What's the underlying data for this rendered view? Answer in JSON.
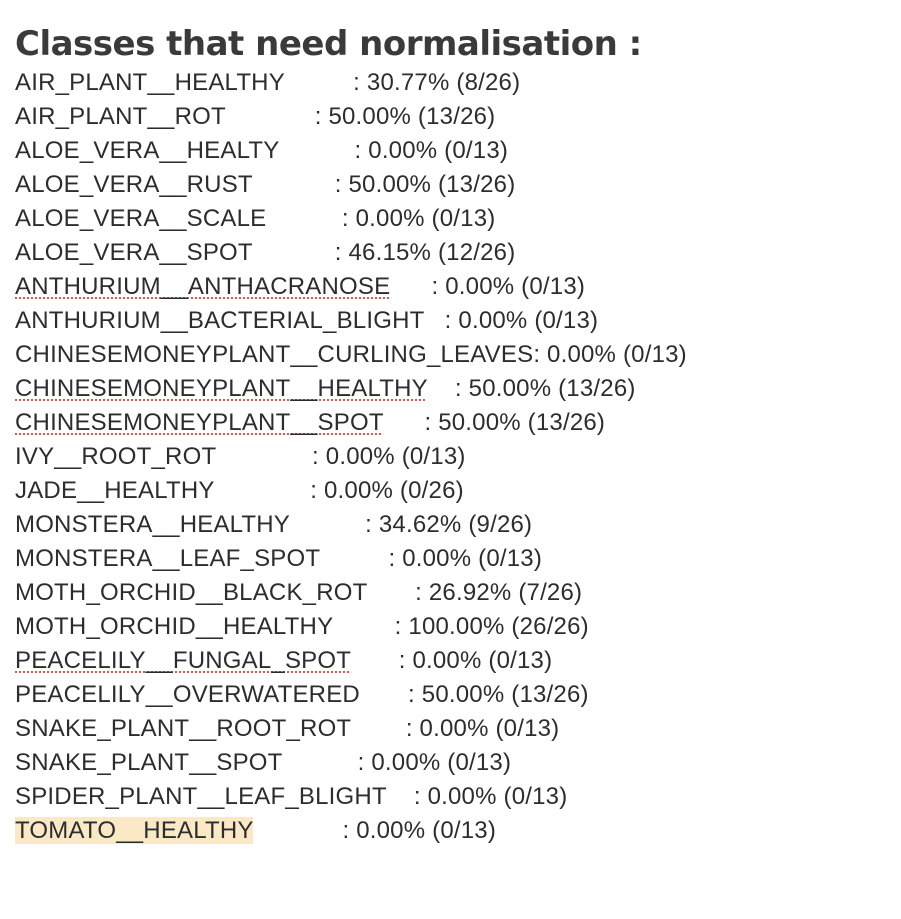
{
  "document": {
    "title": "Classes that need normalisation :",
    "rows": [
      {
        "name": "AIR_PLANT__HEALTHY",
        "stat": "          : 30.77% (8/26)"
      },
      {
        "name": "AIR_PLANT__ROT",
        "stat": "             : 50.00% (13/26)"
      },
      {
        "name": "ALOE_VERA__HEALTY",
        "stat": "           : 0.00% (0/13)"
      },
      {
        "name": "ALOE_VERA__RUST",
        "stat": "            : 50.00% (13/26)"
      },
      {
        "name": "ALOE_VERA__SCALE",
        "stat": "           : 0.00% (0/13)"
      },
      {
        "name": "ALOE_VERA__SPOT",
        "stat": "            : 46.15% (12/26)"
      },
      {
        "name": "ANTHURIUM__ANTHACRANOSE",
        "stat": "      : 0.00% (0/13)"
      },
      {
        "name": "ANTHURIUM__BACTERIAL_BLIGHT",
        "stat": "   : 0.00% (0/13)"
      },
      {
        "name": "CHINESEMONEYPLANT__CURLING_LEAVES",
        "stat": ": 0.00% (0/13)"
      },
      {
        "name": "CHINESEMONEYPLANT__HEALTHY",
        "stat": "    : 50.00% (13/26)"
      },
      {
        "name": "CHINESEMONEYPLANT__SPOT",
        "stat": "      : 50.00% (13/26)"
      },
      {
        "name": "IVY__ROOT_ROT",
        "stat": "              : 0.00% (0/13)"
      },
      {
        "name": "JADE__HEALTHY",
        "stat": "              : 0.00% (0/26)"
      },
      {
        "name": "MONSTERA__HEALTHY",
        "stat": "           : 34.62% (9/26)"
      },
      {
        "name": "MONSTERA__LEAF_SPOT",
        "stat": "          : 0.00% (0/13)"
      },
      {
        "name": "MOTH_ORCHID__BLACK_ROT",
        "stat": "       : 26.92% (7/26)"
      },
      {
        "name": "MOTH_ORCHID__HEALTHY",
        "stat": "         : 100.00% (26/26)"
      },
      {
        "name": "PEACELILY__FUNGAL_SPOT",
        "stat": "       : 0.00% (0/13)"
      },
      {
        "name": "PEACELILY__OVERWATERED",
        "stat": "       : 50.00% (13/26)"
      },
      {
        "name": "SNAKE_PLANT__ROOT_ROT",
        "stat": "        : 0.00% (0/13)"
      },
      {
        "name": "SNAKE_PLANT__SPOT",
        "stat": "           : 0.00% (0/13)"
      },
      {
        "name": "SPIDER_PLANT__LEAF_BLIGHT",
        "stat": "    : 0.00% (0/13)"
      },
      {
        "name": "TOMATO__HEALTHY",
        "stat": "             : 0.00% (0/13)"
      }
    ]
  },
  "colors": {
    "text": "#2d2d2d",
    "spellcheck_underline": "#e5534b",
    "highlight": "#fbe9c6"
  }
}
